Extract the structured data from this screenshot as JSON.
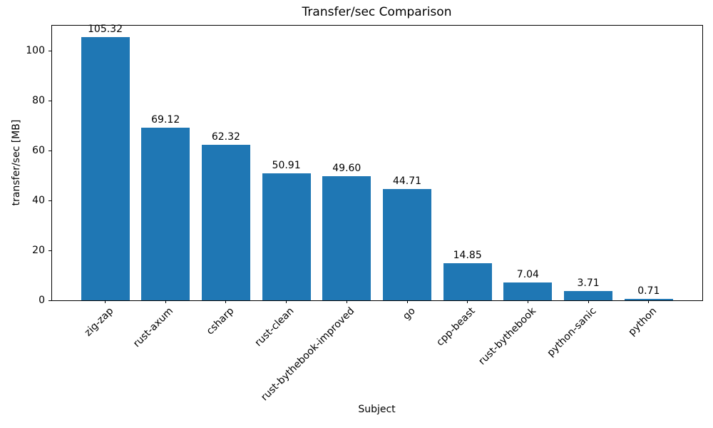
{
  "chart_data": {
    "type": "bar",
    "title": "Transfer/sec Comparison",
    "xlabel": "Subject",
    "ylabel": "transfer/sec [MB]",
    "categories": [
      "zig-zap",
      "rust-axum",
      "csharp",
      "rust-clean",
      "rust-bythebook-improved",
      "go",
      "cpp-beast",
      "rust-bythebook",
      "python-sanic",
      "python"
    ],
    "values": [
      105.32,
      69.12,
      62.32,
      50.91,
      49.6,
      44.71,
      14.85,
      7.04,
      3.71,
      0.71
    ],
    "value_labels": [
      "105.32",
      "69.12",
      "62.32",
      "50.91",
      "49.60",
      "44.71",
      "14.85",
      "7.04",
      "3.71",
      "0.71"
    ],
    "bar_color": "#1f77b4",
    "axis_color": "#000000",
    "text_color": "#000000",
    "background_color": "#ffffff",
    "ylim": [
      0,
      110
    ],
    "yticks": [
      0,
      20,
      40,
      60,
      80,
      100
    ],
    "xtick_rotation_deg": 45,
    "grid": false,
    "legend": null
  }
}
